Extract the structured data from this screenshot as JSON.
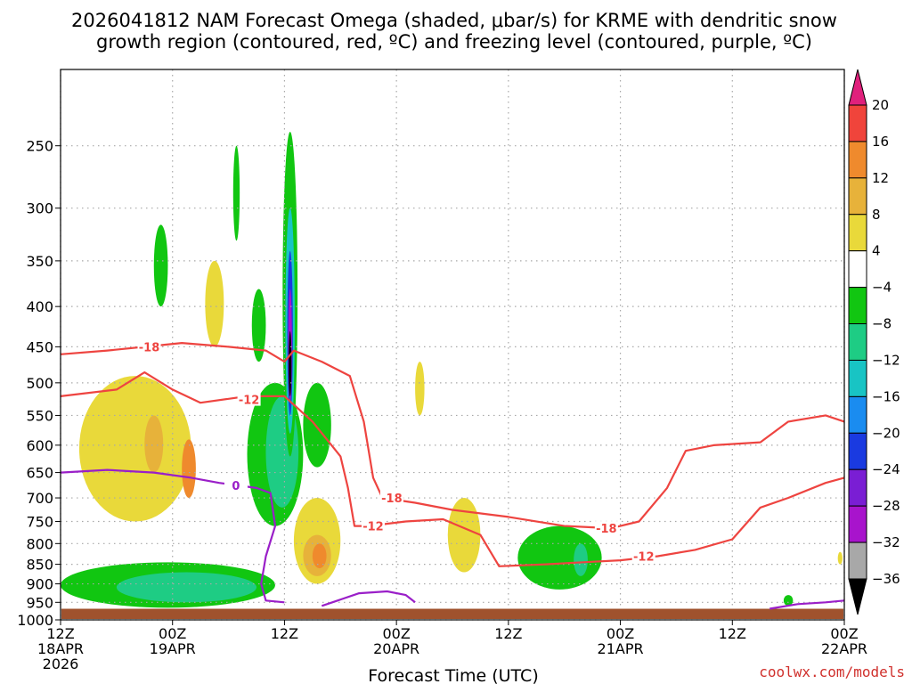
{
  "chart_data": {
    "type": "heatmap",
    "title_lines": [
      "2026041812 NAM Forecast Omega (shaded, μbar/s) for KRME with dendritic snow",
      "growth region (contoured, red, ºC) and freezing level (contoured, purple, ºC)"
    ],
    "xlabel": "Forecast Time (UTC)",
    "credit": "coolwx.com/models",
    "forecast_hours": [
      0,
      84
    ],
    "x_ticks": [
      {
        "hour": 0,
        "lines": [
          "12Z",
          "18APR",
          "2026"
        ]
      },
      {
        "hour": 12,
        "lines": [
          "00Z",
          "19APR"
        ]
      },
      {
        "hour": 24,
        "lines": [
          "12Z"
        ]
      },
      {
        "hour": 36,
        "lines": [
          "00Z",
          "20APR"
        ]
      },
      {
        "hour": 48,
        "lines": [
          "12Z"
        ]
      },
      {
        "hour": 60,
        "lines": [
          "00Z",
          "21APR"
        ]
      },
      {
        "hour": 72,
        "lines": [
          "12Z"
        ]
      },
      {
        "hour": 84,
        "lines": [
          "00Z",
          "22APR"
        ]
      }
    ],
    "y_ticks": [
      "250",
      "300",
      "350",
      "400",
      "450",
      "500",
      "550",
      "600",
      "650",
      "700",
      "750",
      "800",
      "850",
      "900",
      "950",
      "1000"
    ],
    "y_tick_values": [
      250,
      300,
      350,
      400,
      450,
      500,
      550,
      600,
      650,
      700,
      750,
      800,
      850,
      900,
      950,
      1000
    ],
    "pressure_range_hpa": [
      200,
      1000
    ],
    "colorbar": {
      "labels": [
        "20",
        "16",
        "12",
        "8",
        "4",
        "−4",
        "−8",
        "−12",
        "−16",
        "−20",
        "−24",
        "−28",
        "−32",
        "−36"
      ],
      "bins": [
        {
          "from": 20,
          "to": 24,
          "color": "#e0207c"
        },
        {
          "from": 16,
          "to": 20,
          "color": "#f0443b"
        },
        {
          "from": 12,
          "to": 16,
          "color": "#ef8a2d"
        },
        {
          "from": 8,
          "to": 12,
          "color": "#e7b23a"
        },
        {
          "from": 4,
          "to": 8,
          "color": "#e9d93a"
        },
        {
          "from": -4,
          "to": 4,
          "color": "#ffffff"
        },
        {
          "from": -8,
          "to": -4,
          "color": "#11c611"
        },
        {
          "from": -12,
          "to": -8,
          "color": "#1ecc84"
        },
        {
          "from": -16,
          "to": -12,
          "color": "#18c4c4"
        },
        {
          "from": -20,
          "to": -16,
          "color": "#1a8cf0"
        },
        {
          "from": -24,
          "to": -20,
          "color": "#1a3ae0"
        },
        {
          "from": -28,
          "to": -24,
          "color": "#7a1ed4"
        },
        {
          "from": -32,
          "to": -28,
          "color": "#a814cc"
        },
        {
          "from": -36,
          "to": -32,
          "color": "#a8a8a8"
        },
        {
          "from": -40,
          "to": -36,
          "color": "#000000"
        }
      ]
    },
    "terrain": {
      "color": "#a0522d",
      "surface_hpa": 968
    },
    "shading_regions": [
      {
        "level": "-4",
        "hours": [
          0,
          23
        ],
        "hpa": [
          845,
          965
        ]
      },
      {
        "level": "-8",
        "hours": [
          6,
          21
        ],
        "hpa": [
          870,
          950
        ]
      },
      {
        "level": "-4",
        "hours": [
          10,
          11.5
        ],
        "hpa": [
          315,
          400
        ]
      },
      {
        "level": "-4",
        "hours": [
          18.5,
          19.2
        ],
        "hpa": [
          250,
          330
        ]
      },
      {
        "level": "-4",
        "hours": [
          20.5,
          22
        ],
        "hpa": [
          380,
          470
        ]
      },
      {
        "level": "-4",
        "hours": [
          20,
          26
        ],
        "hpa": [
          500,
          760
        ]
      },
      {
        "level": "-8",
        "hours": [
          22,
          25.5
        ],
        "hpa": [
          520,
          720
        ]
      },
      {
        "level": "4",
        "hours": [
          2,
          14
        ],
        "hpa": [
          490,
          750
        ]
      },
      {
        "level": "8",
        "hours": [
          9,
          11
        ],
        "hpa": [
          550,
          650
        ]
      },
      {
        "level": "12",
        "hours": [
          13,
          14.5
        ],
        "hpa": [
          590,
          700
        ]
      },
      {
        "level": "4",
        "hours": [
          15.5,
          17.5
        ],
        "hpa": [
          350,
          450
        ]
      },
      {
        "level": "4",
        "hours": [
          25,
          30
        ],
        "hpa": [
          700,
          900
        ]
      },
      {
        "level": "8",
        "hours": [
          26,
          29
        ],
        "hpa": [
          780,
          880
        ]
      },
      {
        "level": "12",
        "hours": [
          27,
          28.5
        ],
        "hpa": [
          800,
          860
        ]
      },
      {
        "level": "-4",
        "hours": [
          26,
          29
        ],
        "hpa": [
          500,
          640
        ]
      },
      {
        "level": "-4",
        "hours": [
          23.8,
          25.4
        ],
        "hpa": [
          240,
          620
        ]
      },
      {
        "level": "-12",
        "hours": [
          24.1,
          25.1
        ],
        "hpa": [
          300,
          580
        ]
      },
      {
        "level": "-20",
        "hours": [
          24.3,
          24.9
        ],
        "hpa": [
          340,
          550
        ]
      },
      {
        "level": "-28",
        "hours": [
          24.4,
          24.8
        ],
        "hpa": [
          380,
          530
        ]
      },
      {
        "level": "-36",
        "hours": [
          24.45,
          24.75
        ],
        "hpa": [
          430,
          520
        ]
      },
      {
        "level": "4",
        "hours": [
          38,
          39
        ],
        "hpa": [
          470,
          550
        ]
      },
      {
        "level": "4",
        "hours": [
          41.5,
          45
        ],
        "hpa": [
          700,
          870
        ]
      },
      {
        "level": "-4",
        "hours": [
          49,
          58
        ],
        "hpa": [
          760,
          915
        ]
      },
      {
        "level": "-8",
        "hours": [
          55,
          56.5
        ],
        "hpa": [
          800,
          880
        ]
      },
      {
        "level": "-4",
        "hours": [
          77.5,
          78.5
        ],
        "hpa": [
          930,
          960
        ]
      },
      {
        "level": "4",
        "hours": [
          83.3,
          83.8
        ],
        "hpa": [
          820,
          850
        ]
      }
    ],
    "dgz_contours": [
      {
        "label": "-18",
        "points": [
          [
            0,
            460
          ],
          [
            5,
            455
          ],
          [
            9,
            450
          ],
          [
            13,
            445
          ],
          [
            18,
            450
          ],
          [
            22,
            455
          ],
          [
            24,
            470
          ],
          [
            25,
            455
          ],
          [
            28,
            470
          ],
          [
            31,
            490
          ],
          [
            32.5,
            560
          ],
          [
            33.5,
            660
          ],
          [
            34.5,
            700
          ],
          [
            38,
            710
          ],
          [
            42,
            725
          ],
          [
            48,
            740
          ],
          [
            54,
            760
          ],
          [
            59,
            765
          ],
          [
            62,
            750
          ],
          [
            65,
            680
          ],
          [
            67,
            610
          ],
          [
            70,
            600
          ],
          [
            75,
            595
          ],
          [
            78,
            560
          ],
          [
            82,
            550
          ],
          [
            84,
            560
          ]
        ]
      },
      {
        "label": "-12",
        "points": [
          [
            0,
            520
          ],
          [
            6,
            510
          ],
          [
            9,
            485
          ],
          [
            12,
            510
          ],
          [
            15,
            530
          ],
          [
            20,
            520
          ],
          [
            24,
            520
          ],
          [
            27,
            560
          ],
          [
            30,
            620
          ],
          [
            30.8,
            680
          ],
          [
            31.5,
            760
          ],
          [
            33,
            760
          ],
          [
            37,
            750
          ],
          [
            41,
            745
          ],
          [
            45,
            780
          ],
          [
            47,
            855
          ],
          [
            52,
            850
          ],
          [
            56,
            845
          ],
          [
            60,
            840
          ],
          [
            64,
            830
          ],
          [
            68,
            815
          ],
          [
            72,
            790
          ],
          [
            75,
            720
          ],
          [
            78,
            700
          ],
          [
            82,
            670
          ],
          [
            84,
            660
          ]
        ]
      }
    ],
    "freezing_contours": [
      {
        "label": "0",
        "points": [
          [
            0,
            650
          ],
          [
            5,
            645
          ],
          [
            10,
            650
          ],
          [
            14,
            660
          ],
          [
            17,
            670
          ],
          [
            21,
            680
          ],
          [
            22.5,
            690
          ],
          [
            23,
            760
          ],
          [
            22,
            830
          ],
          [
            21.5,
            900
          ],
          [
            22,
            945
          ],
          [
            24,
            950
          ]
        ]
      },
      {
        "label": "",
        "points": [
          [
            28,
            960
          ],
          [
            32,
            925
          ],
          [
            35,
            920
          ],
          [
            37,
            930
          ],
          [
            38,
            950
          ]
        ]
      },
      {
        "label": "",
        "points": [
          [
            76,
            968
          ],
          [
            79,
            955
          ],
          [
            82,
            950
          ],
          [
            84,
            945
          ]
        ]
      }
    ]
  }
}
